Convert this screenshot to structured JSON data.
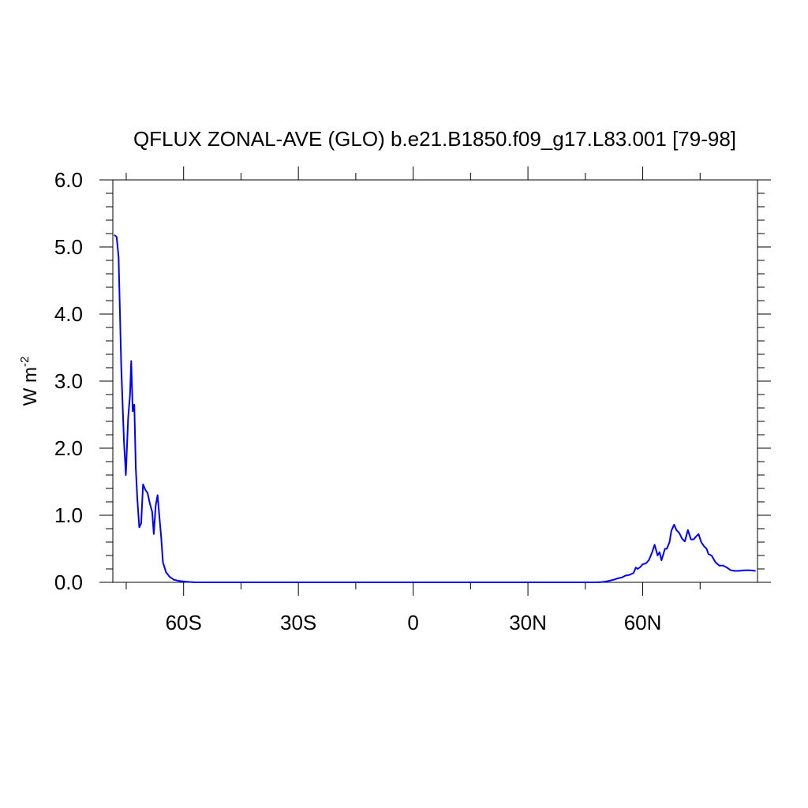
{
  "chart_data": {
    "type": "line",
    "title": "QFLUX ZONAL-AVE (GLO) b.e21.B1850.f09_g17.L83.001 [79-98]",
    "ylabel_main": "W m",
    "ylabel_exponent": "-2",
    "xlim": [
      -78.5,
      90
    ],
    "ylim": [
      0,
      6
    ],
    "x_ticks": [
      {
        "value": -60,
        "label": "60S"
      },
      {
        "value": -30,
        "label": "30S"
      },
      {
        "value": 0,
        "label": "0"
      },
      {
        "value": 30,
        "label": "30N"
      },
      {
        "value": 60,
        "label": "60N"
      }
    ],
    "y_ticks": [
      {
        "value": 0,
        "label": "0.0"
      },
      {
        "value": 1,
        "label": "1.0"
      },
      {
        "value": 2,
        "label": "2.0"
      },
      {
        "value": 3,
        "label": "3.0"
      },
      {
        "value": 4,
        "label": "4.0"
      },
      {
        "value": 5,
        "label": "5.0"
      },
      {
        "value": 6,
        "label": "6.0"
      }
    ],
    "grid": false,
    "series": [
      {
        "color": "#0000ff",
        "x": [
          -78.1,
          -77.5,
          -77.0,
          -76.3,
          -75.6,
          -75.1,
          -74.5,
          -74.0,
          -73.7,
          -73.3,
          -72.9,
          -72.5,
          -72.1,
          -71.6,
          -71.1,
          -70.6,
          -70.0,
          -69.4,
          -68.8,
          -68.2,
          -67.8,
          -67.3,
          -66.8,
          -66.3,
          -65.9,
          -65.4,
          -64.6,
          -63.6,
          -62.6,
          -61.1,
          -59.5,
          -57.0,
          -53.0,
          -45.0,
          -30.0,
          -15.0,
          0.0,
          15.0,
          30.0,
          45.0,
          48.0,
          49.5,
          51.0,
          52.5,
          53.5,
          54.5,
          55.5,
          56.5,
          57.6,
          58.2,
          58.7,
          59.4,
          60.0,
          60.8,
          61.6,
          62.4,
          63.1,
          63.9,
          64.4,
          64.9,
          65.3,
          65.8,
          66.3,
          67.0,
          67.5,
          68.2,
          68.8,
          69.5,
          70.3,
          71.0,
          71.8,
          72.6,
          73.3,
          73.9,
          74.6,
          75.3,
          76.0,
          76.7,
          77.2,
          78.0,
          79.0,
          80.0,
          81.0,
          82.0,
          83.0,
          84.0,
          85.0,
          86.5,
          88.0,
          89.5
        ],
        "y": [
          5.18,
          5.15,
          4.85,
          3.2,
          2.1,
          1.6,
          2.45,
          2.8,
          3.3,
          2.55,
          2.65,
          1.7,
          1.25,
          0.82,
          0.88,
          1.46,
          1.38,
          1.33,
          1.17,
          1.05,
          0.72,
          1.14,
          1.3,
          0.95,
          0.7,
          0.3,
          0.15,
          0.08,
          0.04,
          0.02,
          0.01,
          0.0,
          0.0,
          0.0,
          0.0,
          0.0,
          0.0,
          0.0,
          0.0,
          0.0,
          0.0,
          0.005,
          0.02,
          0.04,
          0.06,
          0.07,
          0.1,
          0.11,
          0.14,
          0.22,
          0.2,
          0.23,
          0.27,
          0.28,
          0.33,
          0.44,
          0.56,
          0.4,
          0.45,
          0.33,
          0.4,
          0.5,
          0.5,
          0.6,
          0.77,
          0.86,
          0.78,
          0.74,
          0.65,
          0.61,
          0.78,
          0.64,
          0.64,
          0.68,
          0.72,
          0.6,
          0.54,
          0.5,
          0.42,
          0.4,
          0.3,
          0.25,
          0.25,
          0.22,
          0.18,
          0.17,
          0.17,
          0.18,
          0.18,
          0.17
        ]
      }
    ]
  }
}
